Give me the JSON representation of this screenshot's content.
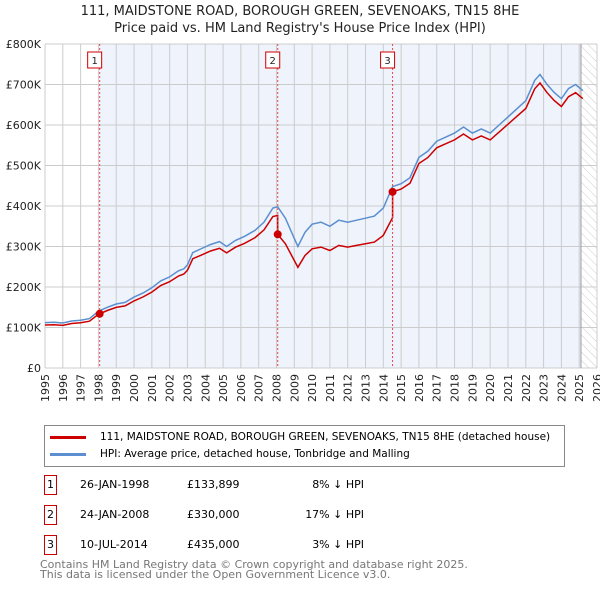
{
  "title_line1": "111, MAIDSTONE ROAD, BOROUGH GREEN, SEVENOAKS, TN15 8HE",
  "title_line2": "Price paid vs. HM Land Registry's House Price Index (HPI)",
  "legend": {
    "property": "111, MAIDSTONE ROAD, BOROUGH GREEN, SEVENOAKS, TN15 8HE (detached house)",
    "hpi": "HPI: Average price, detached house, Tonbridge and Malling"
  },
  "sales": [
    {
      "num": "1",
      "date": "26-JAN-1998",
      "price": "£133,899",
      "delta": "8% ↓ HPI",
      "year": 1998.07,
      "value": 133899
    },
    {
      "num": "2",
      "date": "24-JAN-2008",
      "price": "£330,000",
      "delta": "17% ↓ HPI",
      "year": 2008.07,
      "value": 330000
    },
    {
      "num": "3",
      "date": "10-JUL-2014",
      "price": "£435,000",
      "delta": "3% ↓ HPI",
      "year": 2014.52,
      "value": 435000
    }
  ],
  "footer_line1": "Contains HM Land Registry data © Crown copyright and database right 2025.",
  "footer_line2": "This data is licensed under the Open Government Licence v3.0.",
  "colors": {
    "property": "#cc0000",
    "hpi": "#5b8fd0",
    "shade": "#eef3fc"
  },
  "chart_data": {
    "type": "line",
    "xlim": [
      1995,
      2026
    ],
    "ylim": [
      0,
      800000
    ],
    "x_ticks": [
      "1995",
      "1996",
      "1997",
      "1998",
      "1999",
      "2000",
      "2001",
      "2002",
      "2003",
      "2004",
      "2005",
      "2006",
      "2007",
      "2008",
      "2009",
      "2010",
      "2011",
      "2012",
      "2013",
      "2014",
      "2015",
      "2016",
      "2017",
      "2018",
      "2019",
      "2020",
      "2021",
      "2022",
      "2023",
      "2024",
      "2025",
      "2026"
    ],
    "y_ticks": [
      "£0",
      "£100K",
      "£200K",
      "£300K",
      "£400K",
      "£500K",
      "£600K",
      "£700K",
      "£800K"
    ],
    "forecast_hatch_from": 2025.1,
    "hpi_series": [
      [
        1995.0,
        112
      ],
      [
        1995.5,
        113
      ],
      [
        1996.0,
        111
      ],
      [
        1996.5,
        116
      ],
      [
        1997.0,
        118
      ],
      [
        1997.5,
        122
      ],
      [
        1998.0,
        140
      ],
      [
        1998.5,
        150
      ],
      [
        1999.0,
        158
      ],
      [
        1999.5,
        162
      ],
      [
        2000.0,
        175
      ],
      [
        2000.5,
        185
      ],
      [
        2001.0,
        198
      ],
      [
        2001.5,
        215
      ],
      [
        2002.0,
        225
      ],
      [
        2002.5,
        240
      ],
      [
        2002.8,
        245
      ],
      [
        2003.0,
        255
      ],
      [
        2003.3,
        285
      ],
      [
        2003.8,
        295
      ],
      [
        2004.3,
        305
      ],
      [
        2004.8,
        312
      ],
      [
        2005.2,
        300
      ],
      [
        2005.7,
        315
      ],
      [
        2006.2,
        325
      ],
      [
        2006.8,
        340
      ],
      [
        2007.3,
        360
      ],
      [
        2007.8,
        395
      ],
      [
        2008.07,
        398
      ],
      [
        2008.5,
        370
      ],
      [
        2009.0,
        320
      ],
      [
        2009.2,
        300
      ],
      [
        2009.6,
        335
      ],
      [
        2010.0,
        355
      ],
      [
        2010.5,
        360
      ],
      [
        2011.0,
        350
      ],
      [
        2011.5,
        365
      ],
      [
        2012.0,
        360
      ],
      [
        2012.5,
        365
      ],
      [
        2013.0,
        370
      ],
      [
        2013.5,
        375
      ],
      [
        2014.0,
        395
      ],
      [
        2014.52,
        448
      ],
      [
        2015.0,
        455
      ],
      [
        2015.5,
        470
      ],
      [
        2016.0,
        520
      ],
      [
        2016.5,
        535
      ],
      [
        2017.0,
        560
      ],
      [
        2017.5,
        570
      ],
      [
        2018.0,
        580
      ],
      [
        2018.5,
        595
      ],
      [
        2019.0,
        580
      ],
      [
        2019.5,
        590
      ],
      [
        2020.0,
        580
      ],
      [
        2020.5,
        600
      ],
      [
        2021.0,
        620
      ],
      [
        2021.5,
        640
      ],
      [
        2022.0,
        660
      ],
      [
        2022.5,
        710
      ],
      [
        2022.8,
        725
      ],
      [
        2023.2,
        700
      ],
      [
        2023.6,
        680
      ],
      [
        2024.0,
        665
      ],
      [
        2024.4,
        690
      ],
      [
        2024.8,
        700
      ],
      [
        2025.2,
        685
      ]
    ],
    "hpi_unit": "£K",
    "property_series_note": "indexed from each sale by HPI"
  }
}
